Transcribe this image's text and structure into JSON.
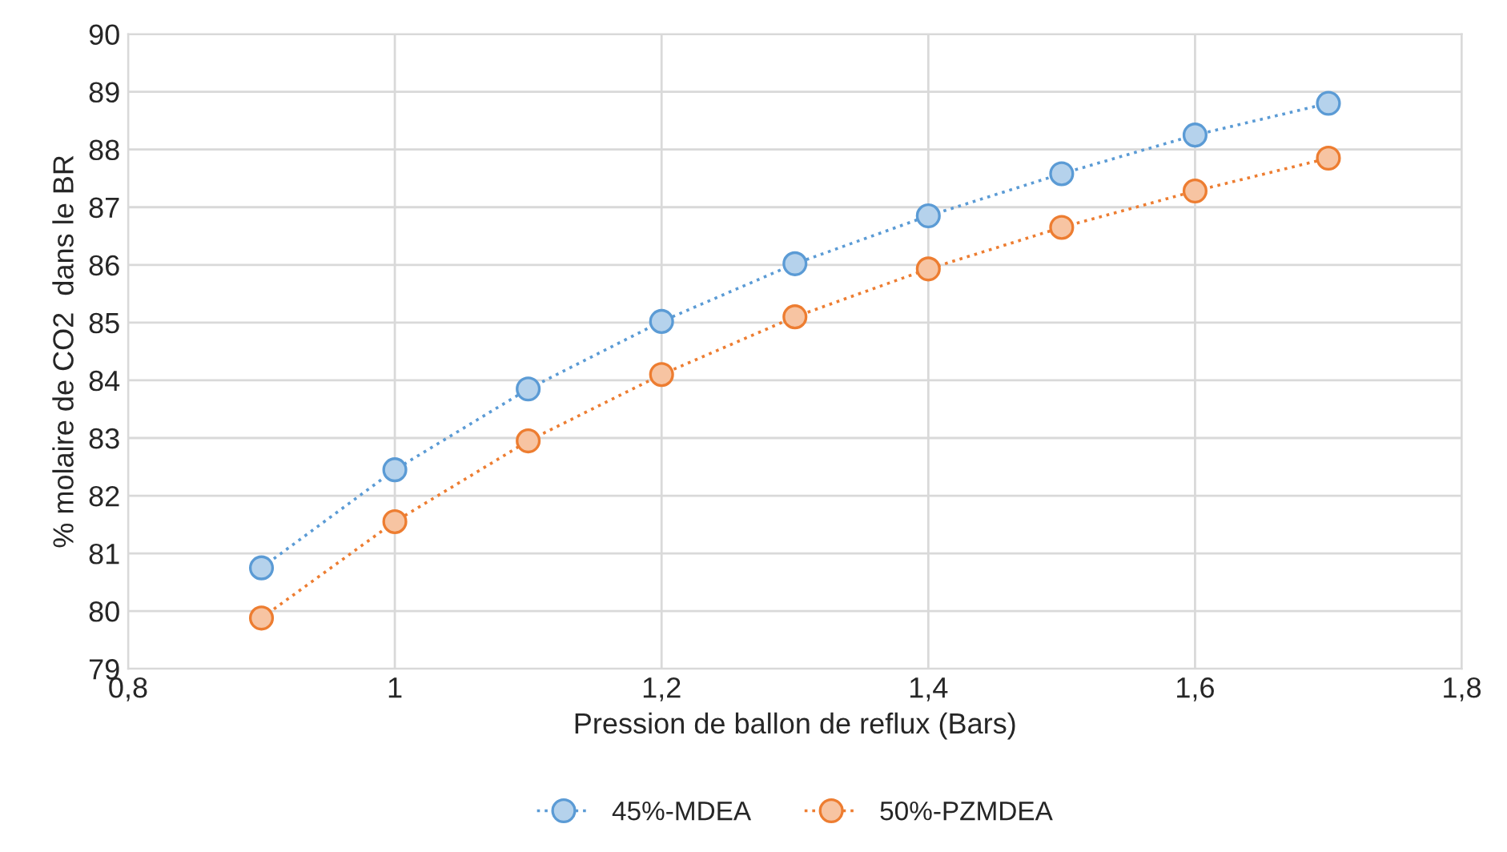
{
  "chart_data": {
    "type": "line",
    "xlabel": "Pression de ballon de reflux (Bars)",
    "ylabel": "% molaire de CO2  dans le BR",
    "x": [
      0.9,
      1.0,
      1.1,
      1.2,
      1.3,
      1.4,
      1.5,
      1.6,
      1.7
    ],
    "series": [
      {
        "name": "45%-MDEA",
        "color": "#5b9bd5",
        "values": [
          80.75,
          82.45,
          83.85,
          85.02,
          86.02,
          86.85,
          87.58,
          88.25,
          88.8
        ]
      },
      {
        "name": "50%-PZMDEA",
        "color": "#ed7d31",
        "values": [
          79.88,
          81.55,
          82.95,
          84.1,
          85.1,
          85.93,
          86.65,
          87.28,
          87.85
        ]
      }
    ],
    "xlim": [
      0.8,
      1.8
    ],
    "xticks": [
      {
        "value": 0.8,
        "label": "0,8"
      },
      1,
      {
        "value": 1.2,
        "label": "1,2"
      },
      {
        "value": 1.4,
        "label": "1,4"
      },
      {
        "value": 1.6,
        "label": "1,6"
      },
      {
        "value": 1.8,
        "label": "1,8"
      }
    ],
    "ylim": [
      79,
      90
    ],
    "yticks": [
      79,
      80,
      81,
      82,
      83,
      84,
      85,
      86,
      87,
      88,
      89,
      90
    ],
    "grid": true,
    "legend": "bottom",
    "marker": "circle",
    "line_style": "dotted"
  }
}
